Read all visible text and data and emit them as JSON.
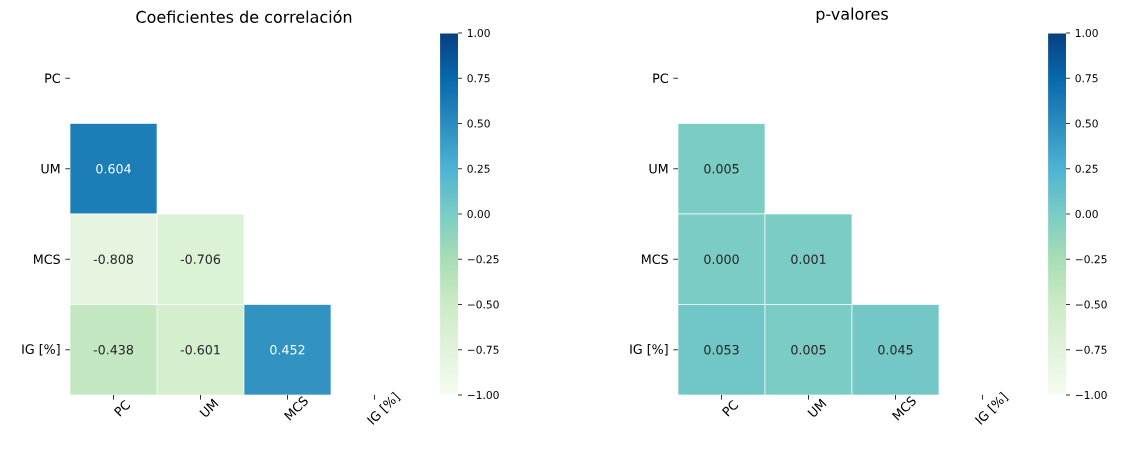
{
  "chart_data": [
    {
      "type": "heatmap",
      "title": "Coeficientes de correlación",
      "data_labels": true,
      "categories": [
        "PC",
        "UM",
        "MCS",
        "IG [%]"
      ],
      "y_categories": [
        "PC",
        "UM",
        "MCS",
        "IG [%]"
      ],
      "cells": [
        [
          null,
          null,
          null,
          null
        ],
        [
          0.604,
          null,
          null,
          null
        ],
        [
          -0.808,
          -0.706,
          null,
          null
        ],
        [
          -0.438,
          -0.601,
          0.452,
          null
        ]
      ],
      "clim": [
        -1,
        1
      ],
      "cticks": [
        {
          "value": -1,
          "label": "−1.00"
        },
        {
          "value": -0.75,
          "label": "−0.75"
        },
        {
          "value": -0.5,
          "label": "−0.50"
        },
        {
          "value": -0.25,
          "label": "−0.25"
        },
        {
          "value": 0,
          "label": "0.00"
        },
        {
          "value": 0.25,
          "label": "0.25"
        },
        {
          "value": 0.5,
          "label": "0.50"
        },
        {
          "value": 0.75,
          "label": "0.75"
        },
        {
          "value": 1,
          "label": "1.00"
        }
      ]
    },
    {
      "type": "heatmap",
      "title": "p-valores",
      "categories": [
        "PC",
        "UM",
        "MCS",
        "IG [%]"
      ],
      "y_categories": [
        "PC",
        "UM",
        "MCS",
        "IG [%]"
      ],
      "cells": [
        [
          null,
          null,
          null,
          null
        ],
        [
          0.005,
          null,
          null,
          null
        ],
        [
          0.0,
          0.001,
          null,
          null
        ],
        [
          0.053,
          0.005,
          0.045,
          null
        ]
      ],
      "cell_labels": [
        [
          null,
          null,
          null,
          null
        ],
        [
          "0.005",
          null,
          null,
          null
        ],
        [
          "0.000",
          "0.001",
          null,
          null
        ],
        [
          "0.053",
          "0.005",
          "0.045",
          null
        ]
      ],
      "clim": [
        -1,
        1
      ],
      "cticks": [
        {
          "value": -1,
          "label": "−1.00"
        },
        {
          "value": -0.75,
          "label": "−0.75"
        },
        {
          "value": -0.5,
          "label": "−0.50"
        },
        {
          "value": -0.25,
          "label": "−0.25"
        },
        {
          "value": 0,
          "label": "0.00"
        },
        {
          "value": 0.25,
          "label": "0.25"
        },
        {
          "value": 0.5,
          "label": "0.50"
        },
        {
          "value": 0.75,
          "label": "0.75"
        },
        {
          "value": 1,
          "label": "1.00"
        }
      ]
    }
  ]
}
